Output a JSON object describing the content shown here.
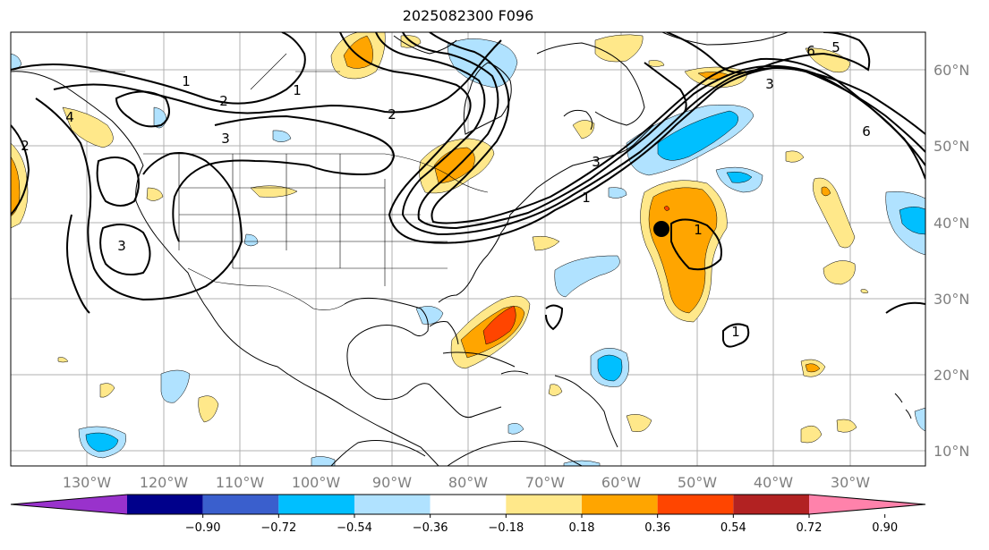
{
  "title": "2025082300 F096",
  "map": {
    "lat_ticks": [
      "60°N",
      "50°N",
      "40°N",
      "30°N",
      "20°N",
      "10°N"
    ],
    "lon_ticks": [
      "130°W",
      "120°W",
      "110°W",
      "100°W",
      "90°W",
      "80°W",
      "70°W",
      "60°W",
      "50°W",
      "40°W",
      "30°W"
    ],
    "contour_labels": [
      "1",
      "2",
      "3",
      "2",
      "1",
      "2",
      "3",
      "4",
      "5",
      "3",
      "6",
      "6",
      "1",
      "1",
      "1",
      "3"
    ],
    "marker": "black-dot"
  },
  "colorbar": {
    "labels": [
      "−0.90",
      "−0.72",
      "−0.54",
      "−0.36",
      "−0.18",
      "0.18",
      "0.36",
      "0.54",
      "0.72",
      "0.90"
    ],
    "colors": [
      "#9932cc",
      "#00008b",
      "#3a5fcd",
      "#00bfff",
      "#b0e2ff",
      "#ffffff",
      "#ffe88a",
      "#ffa500",
      "#ff4500",
      "#b22222",
      "#ff82ab"
    ]
  }
}
